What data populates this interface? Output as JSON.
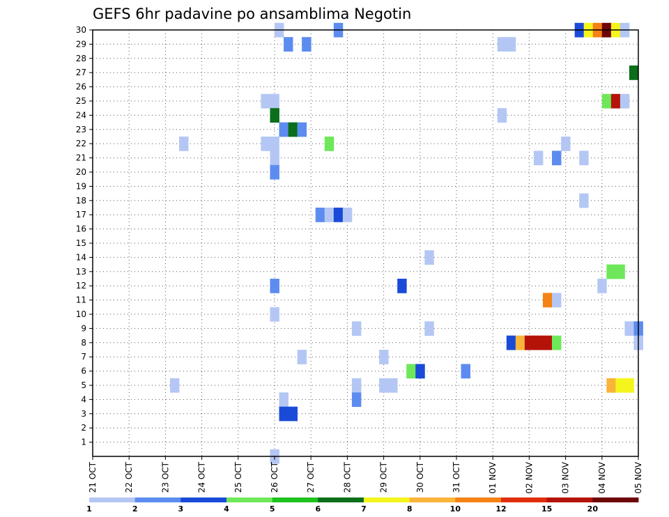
{
  "chart_data": {
    "type": "heatmap",
    "title": "GEFS 6hr padavine po ansamblima Negotin",
    "xlabel": "",
    "ylabel": "",
    "x_ticks": [
      "21 OCT",
      "22 OCT",
      "23 OCT",
      "24 OCT",
      "25 OCT",
      "26 OCT",
      "27 OCT",
      "28 OCT",
      "29 OCT",
      "30 OCT",
      "31 OCT",
      "01 NOV",
      "02 NOV",
      "03 NOV",
      "04 NOV",
      "05 NOV"
    ],
    "y_ticks": [
      1,
      2,
      3,
      4,
      5,
      6,
      7,
      8,
      9,
      10,
      11,
      12,
      13,
      14,
      15,
      16,
      17,
      18,
      19,
      20,
      21,
      22,
      23,
      24,
      25,
      26,
      27,
      28,
      29,
      30
    ],
    "xlim": [
      0,
      60
    ],
    "ylim": [
      0,
      30
    ],
    "x_units": "6-hour steps from 21 OCT 00Z",
    "grid": true,
    "legend": {
      "position": "bottom",
      "labels": [
        "1",
        "2",
        "3",
        "4",
        "5",
        "6",
        "7",
        "8",
        "10",
        "12",
        "15",
        "20"
      ],
      "colors": [
        "#b4c7f4",
        "#5d8cf0",
        "#1a4bd8",
        "#6ee85a",
        "#1fc21f",
        "#0a6e1a",
        "#f5f51e",
        "#f9b43a",
        "#f58214",
        "#e02e0c",
        "#b5130a",
        "#6e0707"
      ]
    },
    "cells": [
      {
        "t": 20.5,
        "m": 30,
        "v": 1
      },
      {
        "t": 27,
        "m": 30,
        "v": 2
      },
      {
        "t": 53.5,
        "m": 30,
        "v": 3
      },
      {
        "t": 54.5,
        "m": 30,
        "v": 7
      },
      {
        "t": 55.5,
        "m": 30,
        "v": 10
      },
      {
        "t": 56.5,
        "m": 30,
        "v": 20
      },
      {
        "t": 57.5,
        "m": 30,
        "v": 7
      },
      {
        "t": 58.5,
        "m": 30,
        "v": 1
      },
      {
        "t": 21.5,
        "m": 29,
        "v": 2
      },
      {
        "t": 23.5,
        "m": 29,
        "v": 2
      },
      {
        "t": 45,
        "m": 29,
        "v": 1
      },
      {
        "t": 46,
        "m": 29,
        "v": 1
      },
      {
        "t": 59.5,
        "m": 27,
        "v": 6
      },
      {
        "t": 19,
        "m": 25,
        "v": 1
      },
      {
        "t": 20,
        "m": 25,
        "v": 1
      },
      {
        "t": 56.5,
        "m": 25,
        "v": 4
      },
      {
        "t": 57.5,
        "m": 25,
        "v": 15
      },
      {
        "t": 58.5,
        "m": 25,
        "v": 1
      },
      {
        "t": 20,
        "m": 24,
        "v": 6
      },
      {
        "t": 45,
        "m": 24,
        "v": 1
      },
      {
        "t": 21,
        "m": 23,
        "v": 2
      },
      {
        "t": 22,
        "m": 23,
        "v": 6
      },
      {
        "t": 23,
        "m": 23,
        "v": 2
      },
      {
        "t": 10,
        "m": 22,
        "v": 1
      },
      {
        "t": 19,
        "m": 22,
        "v": 1
      },
      {
        "t": 20,
        "m": 22,
        "v": 1
      },
      {
        "t": 26,
        "m": 22,
        "v": 4
      },
      {
        "t": 52,
        "m": 22,
        "v": 1
      },
      {
        "t": 20,
        "m": 21,
        "v": 1
      },
      {
        "t": 49,
        "m": 21,
        "v": 1
      },
      {
        "t": 51,
        "m": 21,
        "v": 2
      },
      {
        "t": 54,
        "m": 21,
        "v": 1
      },
      {
        "t": 20,
        "m": 20,
        "v": 2
      },
      {
        "t": 54,
        "m": 18,
        "v": 1
      },
      {
        "t": 25,
        "m": 17,
        "v": 2
      },
      {
        "t": 26,
        "m": 17,
        "v": 1
      },
      {
        "t": 27,
        "m": 17,
        "v": 3
      },
      {
        "t": 28,
        "m": 17,
        "v": 1
      },
      {
        "t": 37,
        "m": 14,
        "v": 1
      },
      {
        "t": 57,
        "m": 13,
        "v": 4
      },
      {
        "t": 58,
        "m": 13,
        "v": 4
      },
      {
        "t": 20,
        "m": 12,
        "v": 2
      },
      {
        "t": 34,
        "m": 12,
        "v": 3
      },
      {
        "t": 56,
        "m": 12,
        "v": 1
      },
      {
        "t": 50,
        "m": 11,
        "v": 10
      },
      {
        "t": 51,
        "m": 11,
        "v": 1
      },
      {
        "t": 20,
        "m": 10,
        "v": 1
      },
      {
        "t": 29,
        "m": 9,
        "v": 1
      },
      {
        "t": 37,
        "m": 9,
        "v": 1
      },
      {
        "t": 59,
        "m": 9,
        "v": 1
      },
      {
        "t": 60,
        "m": 9,
        "v": 2
      },
      {
        "t": 46,
        "m": 8,
        "v": 3
      },
      {
        "t": 47,
        "m": 8,
        "v": 8
      },
      {
        "t": 48,
        "m": 8,
        "v": 15
      },
      {
        "t": 49,
        "m": 8,
        "v": 15
      },
      {
        "t": 50,
        "m": 8,
        "v": 15
      },
      {
        "t": 51,
        "m": 8,
        "v": 4
      },
      {
        "t": 60,
        "m": 8,
        "v": 1
      },
      {
        "t": 23,
        "m": 7,
        "v": 1
      },
      {
        "t": 32,
        "m": 7,
        "v": 1
      },
      {
        "t": 35,
        "m": 6,
        "v": 4
      },
      {
        "t": 36,
        "m": 6,
        "v": 3
      },
      {
        "t": 41,
        "m": 6,
        "v": 2
      },
      {
        "t": 9,
        "m": 5,
        "v": 1
      },
      {
        "t": 29,
        "m": 5,
        "v": 1
      },
      {
        "t": 32,
        "m": 5,
        "v": 1
      },
      {
        "t": 33,
        "m": 5,
        "v": 1
      },
      {
        "t": 57,
        "m": 5,
        "v": 8
      },
      {
        "t": 58,
        "m": 5,
        "v": 7
      },
      {
        "t": 59,
        "m": 5,
        "v": 7
      },
      {
        "t": 21,
        "m": 4,
        "v": 1
      },
      {
        "t": 29,
        "m": 4,
        "v": 2
      },
      {
        "t": 21,
        "m": 3,
        "v": 3
      },
      {
        "t": 22,
        "m": 3,
        "v": 3
      },
      {
        "t": 20,
        "m": 0,
        "v": 1
      }
    ]
  }
}
